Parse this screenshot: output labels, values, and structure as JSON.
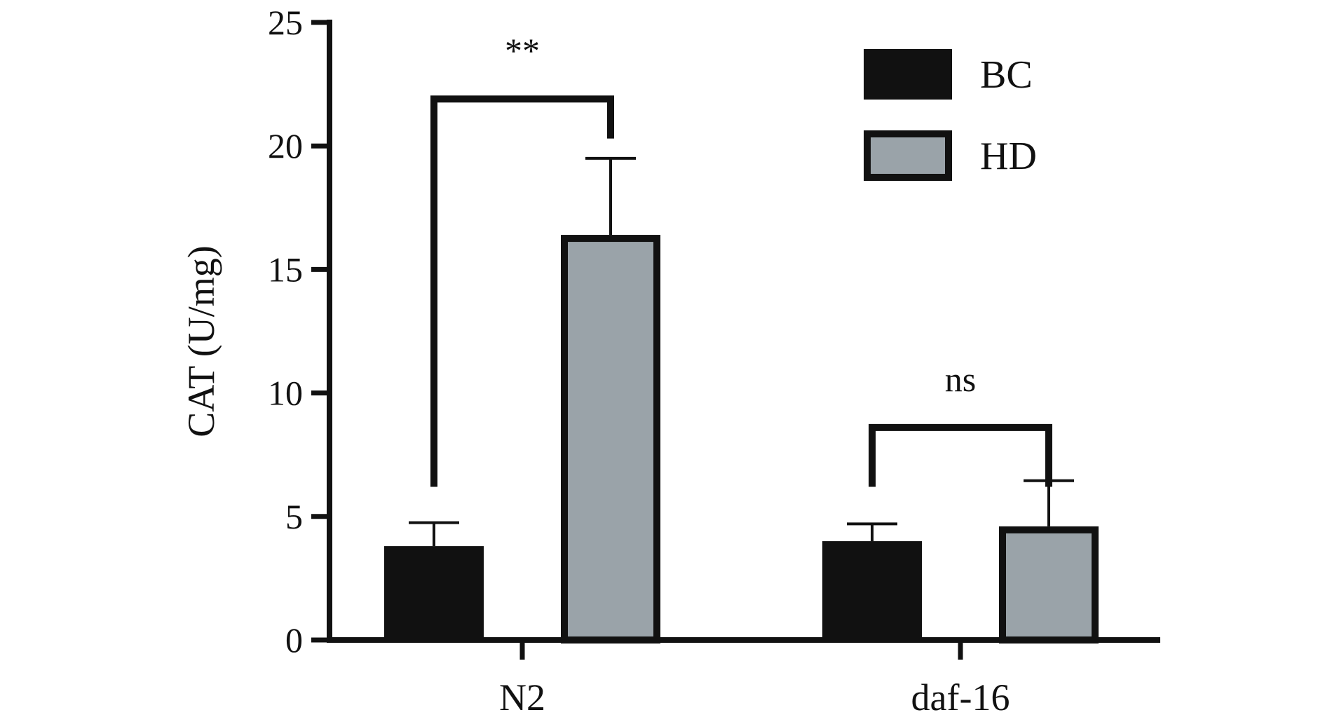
{
  "chart_data": {
    "type": "bar",
    "title": "",
    "xlabel": "",
    "ylabel": "CAT (U/mg)",
    "ylim": [
      0,
      25
    ],
    "yticks": [
      0,
      5,
      10,
      15,
      20,
      25
    ],
    "yticks_text": [
      "0",
      "5",
      "10",
      "15",
      "20",
      "25"
    ],
    "grid": false,
    "legend_position": "top-right",
    "categories": [
      "N2",
      "daf-16"
    ],
    "series": [
      {
        "name": "BC",
        "color": "#111111",
        "values": [
          3.8,
          4.0
        ],
        "errors": [
          0.95,
          0.7
        ]
      },
      {
        "name": "HD",
        "color": "#9aa3a9",
        "values": [
          16.4,
          4.6
        ],
        "errors": [
          3.1,
          1.85
        ]
      }
    ],
    "annotations": [
      {
        "category_index": 0,
        "text": "**",
        "bracket_level": 21.9
      },
      {
        "category_index": 1,
        "text": "ns",
        "bracket_level": 8.6
      }
    ]
  }
}
